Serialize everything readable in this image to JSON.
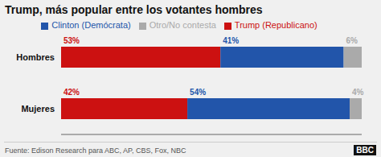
{
  "chart_data": {
    "type": "bar",
    "title": "Trump, más popular entre los votantes hombres",
    "orientation": "horizontal",
    "stacked": true,
    "categories": [
      "Hombres",
      "Mujeres"
    ],
    "series": [
      {
        "name": "Trump (Republicano)",
        "color": "#cc1111",
        "values": [
          53,
          42
        ],
        "value_labels": [
          "53%",
          "42%"
        ]
      },
      {
        "name": "Clinton (Demócrata)",
        "color": "#2255aa",
        "values": [
          41,
          54
        ],
        "value_labels": [
          "41%",
          "54%"
        ]
      },
      {
        "name": "Otro/No contesta",
        "color": "#aaaaaa",
        "values": [
          6,
          4
        ],
        "value_labels": [
          "6%",
          "4%"
        ]
      }
    ],
    "xlim": [
      0,
      100
    ],
    "tick_labels": "y",
    "data_labels": true,
    "grid": false,
    "legend": "top",
    "annotations": [
      "Fuente: Edison Research para ABC, AP, CBS, Fox, NBC",
      "BBC"
    ]
  }
}
